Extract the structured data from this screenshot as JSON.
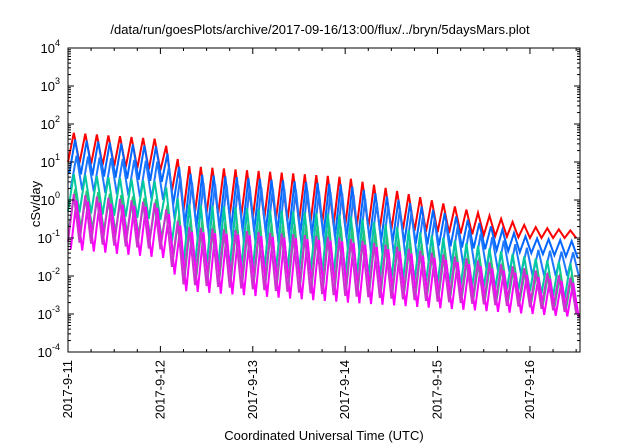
{
  "chart_data": {
    "type": "line",
    "title": "/data/run/goesPlots/archive/2017-09-16/13:00/flux/../bryn/5daysMars.plot",
    "xlabel": "Coordinated Universal Time (UTC)",
    "ylabel": "cSv/day",
    "yscale": "log",
    "ylim": [
      0.0001,
      10000
    ],
    "xlim": [
      "2017-09-11 00:00",
      "2017-09-16 13:00"
    ],
    "grid": false,
    "xticks": [
      "2017-9-11",
      "2017-9-12",
      "2017-9-13",
      "2017-9-14",
      "2017-9-15",
      "2017-9-16"
    ],
    "yticks": [
      {
        "base": "10",
        "exp": "-4"
      },
      {
        "base": "10",
        "exp": "-3"
      },
      {
        "base": "10",
        "exp": "-2"
      },
      {
        "base": "10",
        "exp": "-1"
      },
      {
        "base": "10",
        "exp": "0"
      },
      {
        "base": "10",
        "exp": "1"
      },
      {
        "base": "10",
        "exp": "2"
      },
      {
        "base": "10",
        "exp": "3"
      },
      {
        "base": "10",
        "exp": "4"
      }
    ],
    "oscillation_period_hours": 3,
    "series": [
      {
        "color": "#ff0000",
        "envelope": [
          [
            0,
            10,
            60
          ],
          [
            24,
            6,
            40
          ],
          [
            30,
            0.5,
            8
          ],
          [
            72,
            0.2,
            4
          ],
          [
            120,
            0.1,
            0.2
          ],
          [
            133,
            0.1,
            0.15
          ]
        ]
      },
      {
        "color": "#0066ff",
        "envelope": [
          [
            0,
            5,
            40
          ],
          [
            24,
            3,
            25
          ],
          [
            30,
            0.2,
            5
          ],
          [
            72,
            0.1,
            2.5
          ],
          [
            120,
            0.04,
            0.1
          ],
          [
            133,
            0.03,
            0.08
          ]
        ]
      },
      {
        "color": "#1e78ff",
        "envelope": [
          [
            0,
            2,
            15
          ],
          [
            24,
            1,
            10
          ],
          [
            30,
            0.1,
            3
          ],
          [
            72,
            0.05,
            1.5
          ],
          [
            120,
            0.01,
            0.05
          ],
          [
            133,
            0.01,
            0.04
          ]
        ]
      },
      {
        "color": "#00c8a0",
        "envelope": [
          [
            0,
            0.5,
            5
          ],
          [
            24,
            0.3,
            3
          ],
          [
            30,
            0.02,
            0.8
          ],
          [
            72,
            0.01,
            0.4
          ],
          [
            120,
            0.004,
            0.03
          ],
          [
            133,
            0.002,
            0.02
          ]
        ]
      },
      {
        "color": "#22c87a",
        "envelope": [
          [
            0,
            0.2,
            2
          ],
          [
            24,
            0.1,
            1
          ],
          [
            30,
            0.01,
            0.3
          ],
          [
            72,
            0.005,
            0.2
          ],
          [
            120,
            0.002,
            0.015
          ],
          [
            133,
            0.001,
            0.01
          ]
        ]
      },
      {
        "color": "#ff00ff",
        "envelope": [
          [
            0,
            0.05,
            1
          ],
          [
            24,
            0.03,
            0.6
          ],
          [
            30,
            0.004,
            0.15
          ],
          [
            72,
            0.002,
            0.08
          ],
          [
            120,
            0.001,
            0.01
          ],
          [
            133,
            0.0008,
            0.006
          ]
        ]
      },
      {
        "color": "#cc33cc",
        "envelope": [
          [
            0,
            0.08,
            1.5
          ],
          [
            24,
            0.05,
            0.8
          ],
          [
            30,
            0.006,
            0.2
          ],
          [
            72,
            0.003,
            0.1
          ],
          [
            120,
            0.0015,
            0.015
          ],
          [
            133,
            0.001,
            0.008
          ]
        ]
      }
    ]
  }
}
